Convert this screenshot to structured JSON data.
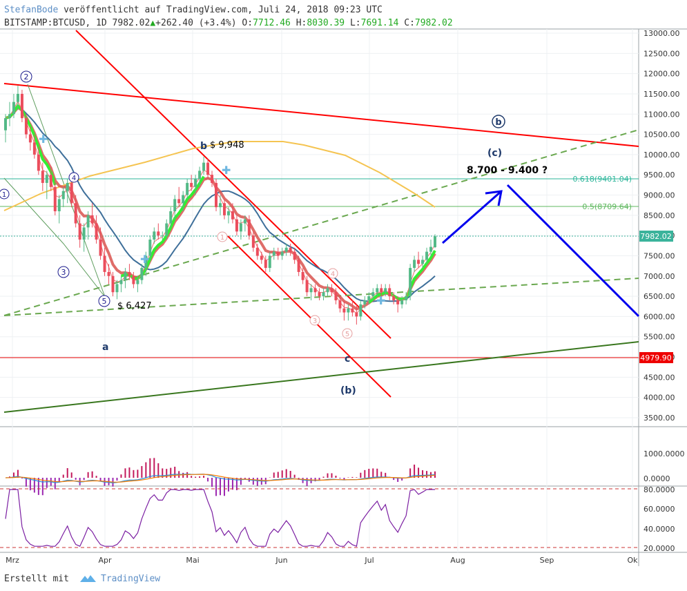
{
  "header": {
    "author": "StefanBode",
    "published": " veröffentlicht auf TradingView.com, Juli 24, 2018 09:23 UTC",
    "symbol": "BITSTAMP:BTCUSD, 1D",
    "last": "7982.02",
    "change": "+262.40 (+3.4%)",
    "o_label": "O:",
    "o": "7712.46",
    "h_label": "H:",
    "h": "8030.39",
    "l_label": "L:",
    "l": "7691.14",
    "c_label": "C:",
    "c": "7982.02"
  },
  "footer": {
    "created_with": "Erstellt mit",
    "brand": "TradingView"
  },
  "colors": {
    "up": "#53b987",
    "down": "#eb4d5c",
    "red_line": "#ff0000",
    "ma_slow": "#f5c451",
    "ma_blue": "#3e6f9a",
    "ema_green": "#33ee33",
    "ema_red": "#d9534f",
    "green_dash": "#6aa84f",
    "dark_green": "#38761d",
    "arrow": "#0000ee",
    "fib_line": "#2bb59a"
  },
  "chart_data": {
    "type": "candlestick",
    "x_ticks": [
      "Mrz",
      "Apr",
      "Mai",
      "Jun",
      "Jul",
      "Aug",
      "Sep",
      "Ok"
    ],
    "price_ticks": [
      "13000.00",
      "12500.00",
      "12000.00",
      "11500.00",
      "11000.00",
      "10500.00",
      "10000.00",
      "9500.00",
      "9000.00",
      "8500.00",
      "8000.00",
      "7500.00",
      "7000.00",
      "6500.00",
      "6000.00",
      "5500.00",
      "5000.00",
      "4500.00",
      "4000.00",
      "3500.00"
    ],
    "ylim": [
      3200,
      13000
    ],
    "current_price_label": "7982.02",
    "support_label": "4979.90",
    "support_price": 4979.9,
    "fib_levels": [
      {
        "label": "0.618(9401.04)",
        "price": 9401.04
      },
      {
        "label": "0.5(8709.64)",
        "price": 8709.64
      }
    ],
    "annotations": {
      "target_range": "8.700 - 9.400 ?",
      "high_b": "$ 9,948",
      "low_5": "$ 6,427",
      "b": "b",
      "a": "a",
      "c": "c",
      "wave_b_paren": "(b)",
      "wave_c_paren": "(c)",
      "wave_b_circle": "b",
      "w1": "1",
      "w2": "2",
      "w3": "3",
      "w4": "4",
      "w5": "5",
      "s1": "1",
      "s3": "3",
      "s4": "4",
      "s5": "5"
    },
    "candles": [
      [
        10600,
        11000,
        10300,
        10900
      ],
      [
        10900,
        11300,
        10700,
        11000
      ],
      [
        11000,
        11500,
        10900,
        11300
      ],
      [
        11300,
        11700,
        11100,
        11500
      ],
      [
        11500,
        11600,
        10800,
        10900
      ],
      [
        10900,
        11000,
        10400,
        10500
      ],
      [
        10500,
        10700,
        10100,
        10300
      ],
      [
        10300,
        10500,
        9900,
        10000
      ],
      [
        10000,
        10200,
        9500,
        9600
      ],
      [
        9600,
        9800,
        9100,
        9300
      ],
      [
        9300,
        9600,
        8900,
        9500
      ],
      [
        9500,
        9700,
        9100,
        9200
      ],
      [
        9200,
        9400,
        8500,
        8600
      ],
      [
        8600,
        9000,
        8300,
        8900
      ],
      [
        8900,
        9200,
        8700,
        9100
      ],
      [
        9100,
        9400,
        8800,
        9300
      ],
      [
        9300,
        9500,
        8700,
        8800
      ],
      [
        8800,
        9000,
        8200,
        8300
      ],
      [
        8300,
        8500,
        7700,
        7900
      ],
      [
        7900,
        8300,
        7600,
        8200
      ],
      [
        8200,
        8600,
        7900,
        8500
      ],
      [
        8500,
        8800,
        8200,
        8300
      ],
      [
        8300,
        8500,
        7800,
        7900
      ],
      [
        7900,
        8200,
        7400,
        7500
      ],
      [
        7500,
        7700,
        7000,
        7100
      ],
      [
        7100,
        7300,
        6800,
        7000
      ],
      [
        7000,
        7100,
        6500,
        6600
      ],
      [
        6600,
        6900,
        6427,
        6800
      ],
      [
        6800,
        7000,
        6600,
        6900
      ],
      [
        6900,
        7200,
        6700,
        7100
      ],
      [
        7100,
        7300,
        6900,
        7000
      ],
      [
        7000,
        7100,
        6700,
        6800
      ],
      [
        6800,
        7000,
        6600,
        6900
      ],
      [
        6900,
        7300,
        6800,
        7200
      ],
      [
        7200,
        7600,
        7000,
        7500
      ],
      [
        7500,
        8000,
        7400,
        7900
      ],
      [
        7900,
        8200,
        7800,
        8100
      ],
      [
        8100,
        8300,
        7900,
        8000
      ],
      [
        8000,
        8100,
        7900,
        8000
      ],
      [
        8000,
        8400,
        7900,
        8300
      ],
      [
        8300,
        8700,
        8200,
        8600
      ],
      [
        8600,
        9000,
        8400,
        8900
      ],
      [
        8900,
        9200,
        8700,
        8800
      ],
      [
        8800,
        9100,
        8600,
        9000
      ],
      [
        9000,
        9400,
        8900,
        9300
      ],
      [
        9300,
        9500,
        9100,
        9200
      ],
      [
        9200,
        9500,
        9000,
        9400
      ],
      [
        9400,
        9700,
        9200,
        9600
      ],
      [
        9600,
        9948,
        9500,
        9800
      ],
      [
        9800,
        9900,
        9400,
        9500
      ],
      [
        9500,
        9600,
        9200,
        9300
      ],
      [
        9300,
        9400,
        8600,
        8700
      ],
      [
        8700,
        9000,
        8500,
        8800
      ],
      [
        8800,
        8900,
        8400,
        8500
      ],
      [
        8500,
        8700,
        8300,
        8600
      ],
      [
        8600,
        8800,
        8300,
        8400
      ],
      [
        8400,
        8500,
        8000,
        8100
      ],
      [
        8100,
        8400,
        7900,
        8300
      ],
      [
        8300,
        8500,
        8100,
        8400
      ],
      [
        8400,
        8500,
        7900,
        8000
      ],
      [
        8000,
        8100,
        7600,
        7700
      ],
      [
        7700,
        7800,
        7400,
        7500
      ],
      [
        7500,
        7600,
        7300,
        7400
      ],
      [
        7400,
        7500,
        7100,
        7200
      ],
      [
        7200,
        7600,
        7100,
        7500
      ],
      [
        7500,
        7700,
        7400,
        7600
      ],
      [
        7600,
        7700,
        7400,
        7500
      ],
      [
        7500,
        7700,
        7400,
        7600
      ],
      [
        7600,
        7800,
        7500,
        7700
      ],
      [
        7700,
        7800,
        7500,
        7600
      ],
      [
        7600,
        7700,
        7300,
        7400
      ],
      [
        7400,
        7500,
        7000,
        7100
      ],
      [
        7100,
        7200,
        6800,
        6900
      ],
      [
        6900,
        7000,
        6500,
        6600
      ],
      [
        6600,
        6800,
        6400,
        6700
      ],
      [
        6700,
        6800,
        6500,
        6600
      ],
      [
        6600,
        6700,
        6400,
        6500
      ],
      [
        6500,
        6700,
        6400,
        6600
      ],
      [
        6600,
        6800,
        6500,
        6700
      ],
      [
        6700,
        6800,
        6500,
        6600
      ],
      [
        6600,
        6700,
        6300,
        6400
      ],
      [
        6400,
        6500,
        6100,
        6200
      ],
      [
        6200,
        6400,
        5900,
        6100
      ],
      [
        6100,
        6300,
        5900,
        6200
      ],
      [
        6200,
        6400,
        6000,
        6100
      ],
      [
        6100,
        6300,
        5800,
        6000
      ],
      [
        6000,
        6400,
        5900,
        6300
      ],
      [
        6300,
        6500,
        6200,
        6400
      ],
      [
        6400,
        6600,
        6300,
        6500
      ],
      [
        6500,
        6700,
        6400,
        6600
      ],
      [
        6600,
        6800,
        6500,
        6700
      ],
      [
        6700,
        6800,
        6500,
        6600
      ],
      [
        6600,
        6800,
        6500,
        6700
      ],
      [
        6700,
        6800,
        6400,
        6500
      ],
      [
        6500,
        6600,
        6300,
        6400
      ],
      [
        6400,
        6500,
        6100,
        6300
      ],
      [
        6300,
        6500,
        6200,
        6400
      ],
      [
        6400,
        6600,
        6300,
        6500
      ],
      [
        6500,
        7300,
        6400,
        7200
      ],
      [
        7200,
        7500,
        7100,
        7400
      ],
      [
        7400,
        7600,
        7200,
        7300
      ],
      [
        7300,
        7500,
        7200,
        7400
      ],
      [
        7400,
        7700,
        7300,
        7600
      ],
      [
        7600,
        7900,
        7500,
        7720
      ],
      [
        7712,
        8030,
        7691,
        7982
      ]
    ]
  }
}
